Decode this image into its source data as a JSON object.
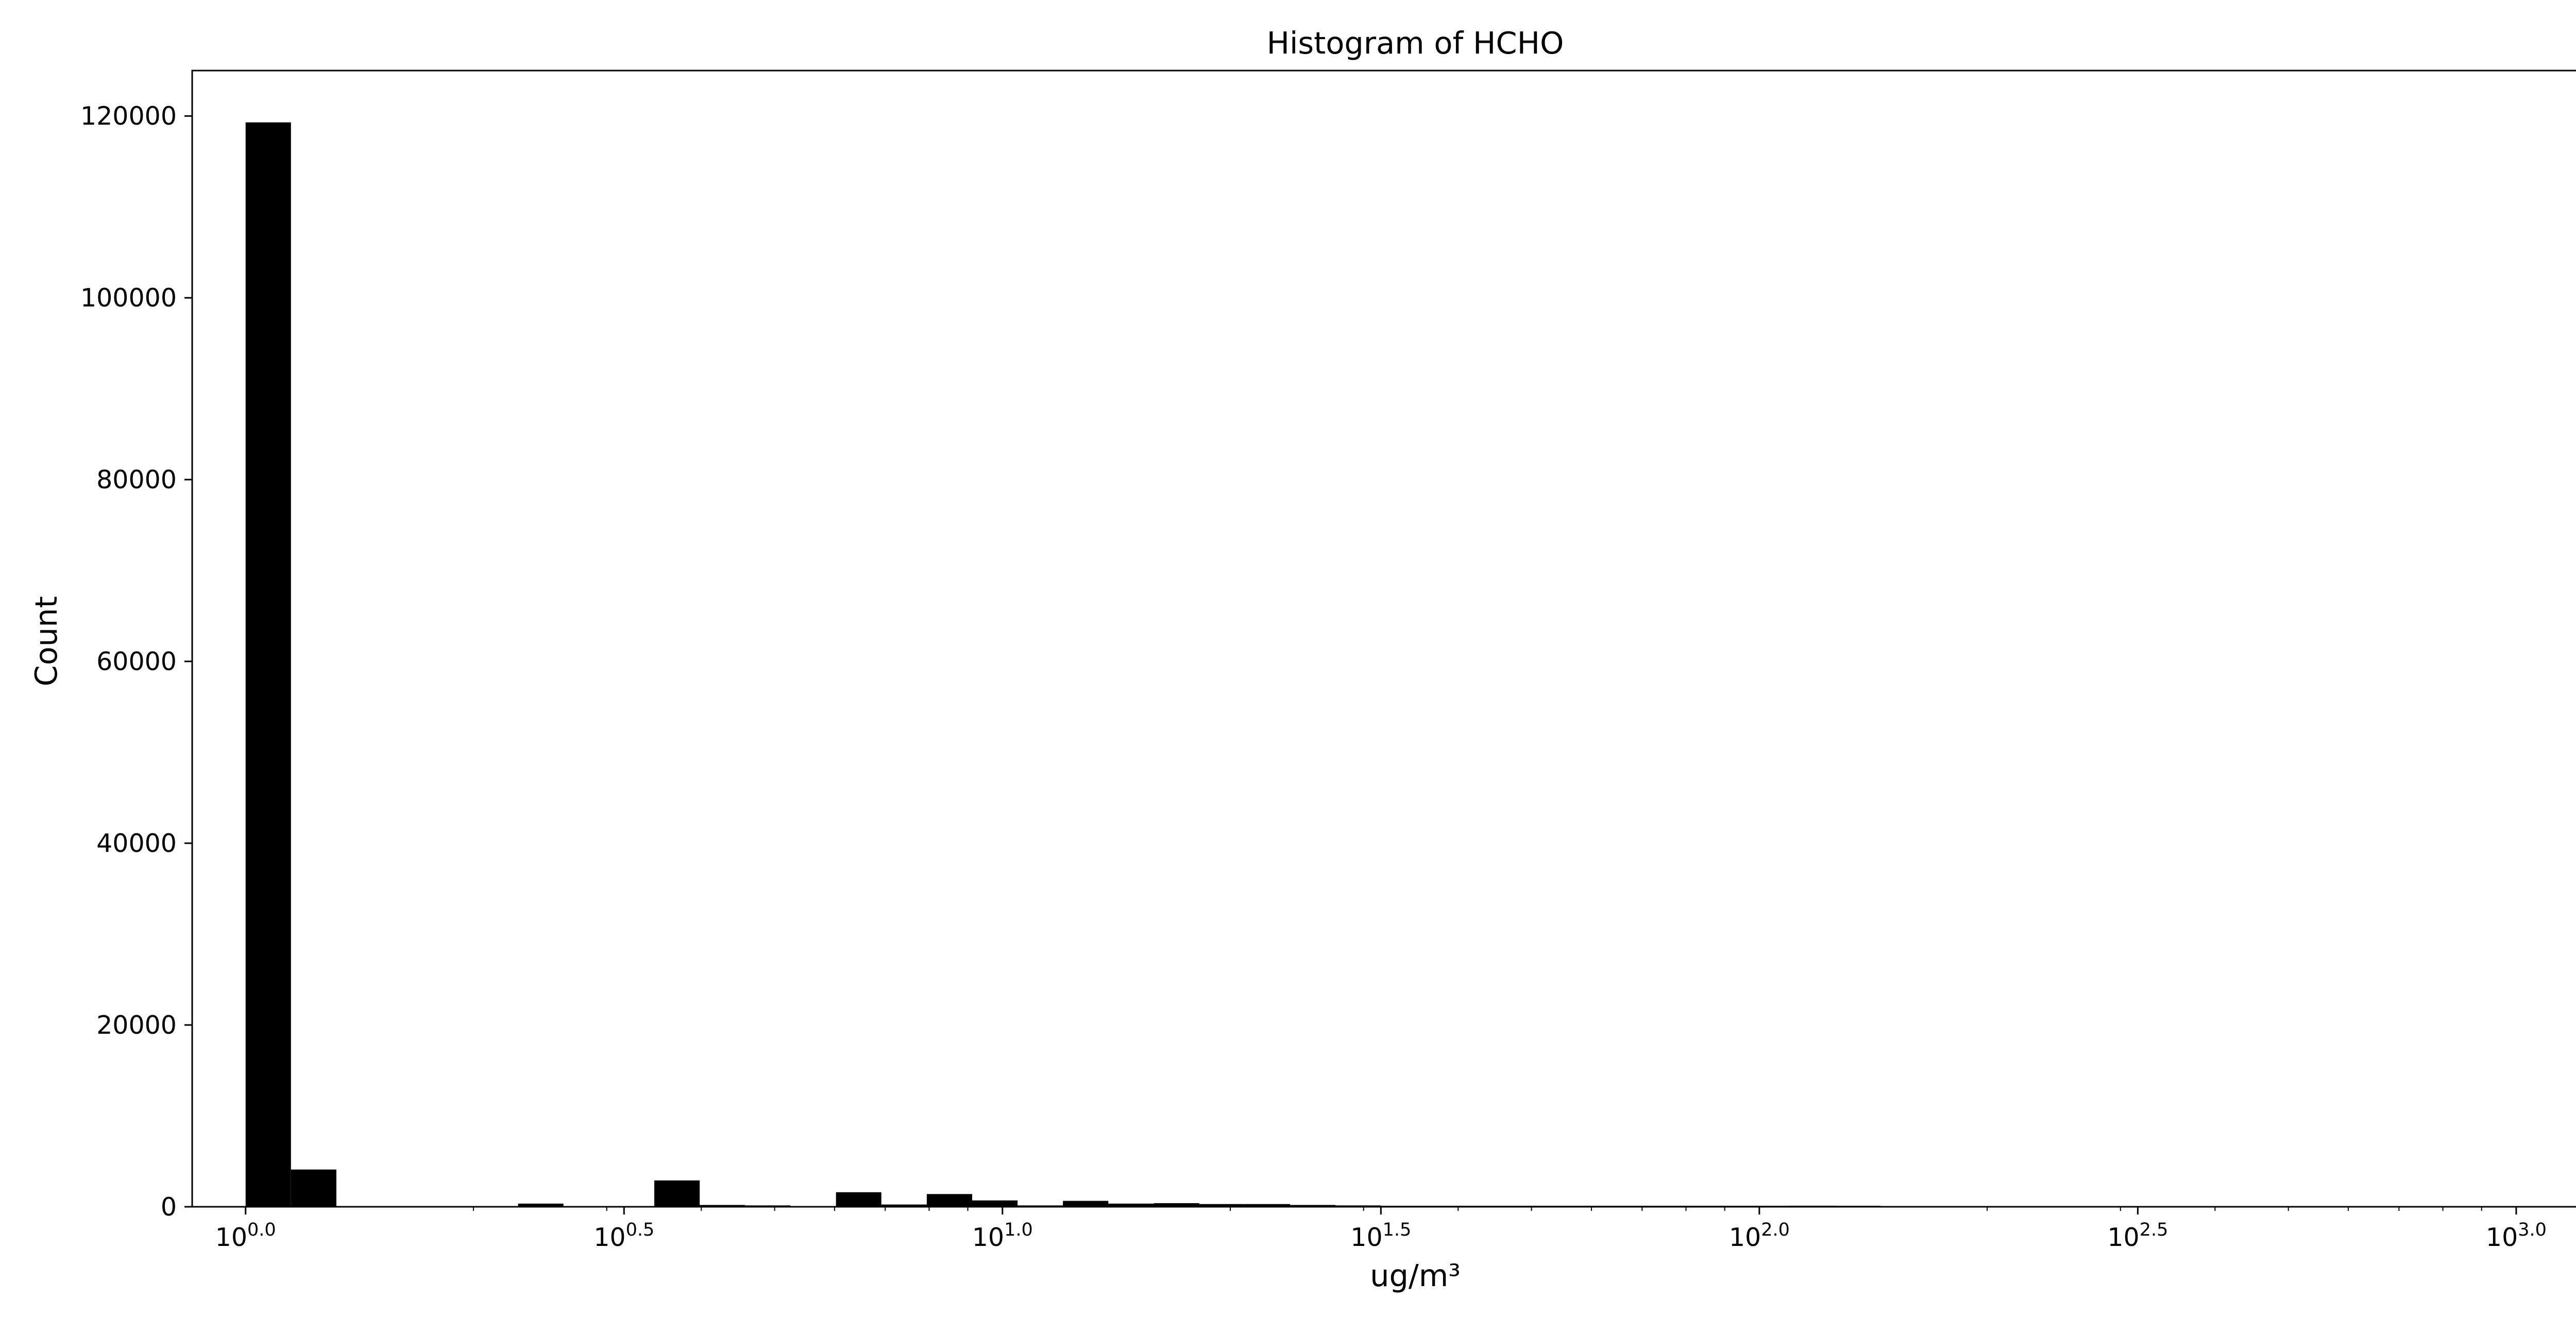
{
  "chart_data": {
    "type": "bar",
    "title": "Histogram of HCHO",
    "xlabel": "ug/m³",
    "ylabel": "Count",
    "x_scale": "log10",
    "xlim": [
      0.85,
      1450
    ],
    "ylim": [
      0,
      125000
    ],
    "x_ticks": [
      {
        "value": 1,
        "base": "10",
        "exp": "0.0"
      },
      {
        "value": 3.1623,
        "base": "10",
        "exp": "0.5"
      },
      {
        "value": 10,
        "base": "10",
        "exp": "1.0"
      },
      {
        "value": 31.623,
        "base": "10",
        "exp": "1.5"
      },
      {
        "value": 100,
        "base": "10",
        "exp": "2.0"
      },
      {
        "value": 316.23,
        "base": "10",
        "exp": "2.5"
      },
      {
        "value": 1000,
        "base": "10",
        "exp": "3.0"
      }
    ],
    "y_ticks": [
      0,
      20000,
      40000,
      60000,
      80000,
      100000,
      120000
    ],
    "y_tick_labels": [
      "0",
      "20000",
      "40000",
      "60000",
      "80000",
      "100000",
      "120000"
    ],
    "bin_edges": [
      1.0,
      1.148,
      1.318,
      1.514,
      1.738,
      1.995,
      2.291,
      2.63,
      3.02,
      3.467,
      3.981,
      4.571,
      5.248,
      6.026,
      6.918,
      7.943,
      9.12,
      10.47,
      12.02,
      13.8,
      15.85,
      18.2,
      20.89,
      23.99,
      27.54,
      31.62,
      36.31,
      41.69,
      47.86,
      54.95,
      63.1,
      72.44,
      83.18,
      95.5,
      109.6,
      125.9,
      144.5
    ],
    "counts": [
      119300,
      4100,
      0,
      0,
      0,
      0,
      350,
      0,
      0,
      2900,
      200,
      150,
      0,
      1600,
      250,
      1400,
      700,
      150,
      650,
      350,
      400,
      300,
      300,
      200,
      150,
      100,
      80,
      60,
      60,
      50,
      40,
      40,
      40,
      40,
      120,
      30
    ],
    "bar_color": "#000000",
    "grid": false,
    "legend": {
      "position": "top-right",
      "entries": []
    }
  }
}
